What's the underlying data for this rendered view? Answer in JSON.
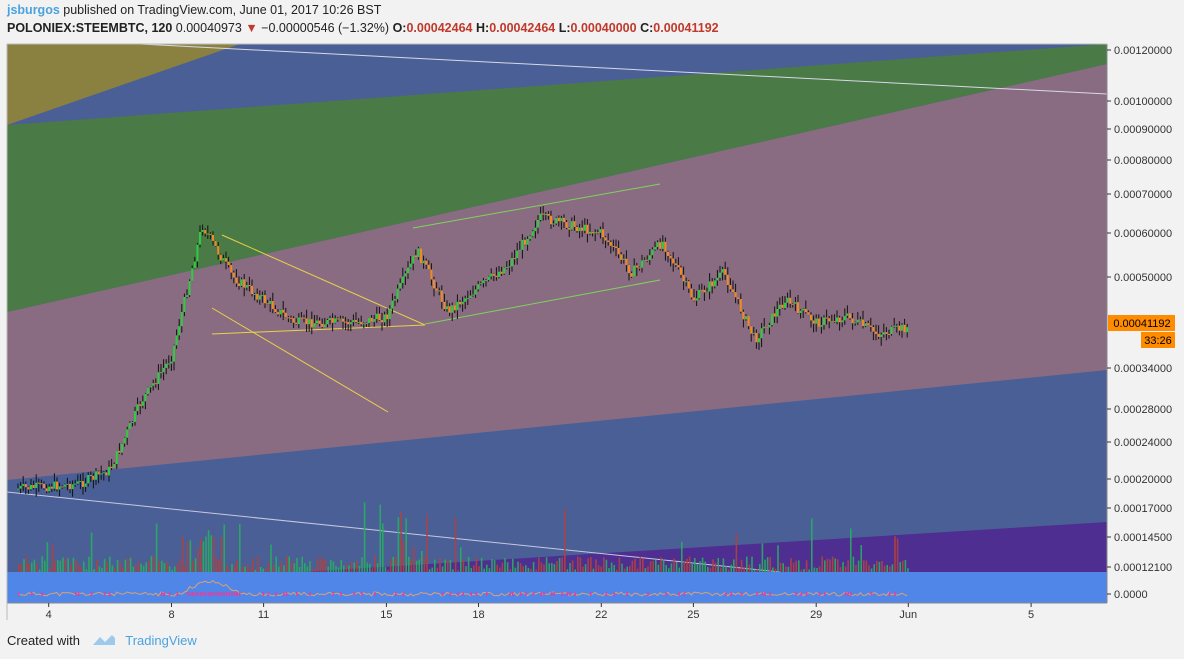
{
  "header": {
    "username": "jsburgos",
    "published_text": "published on TradingView.com, June 01, 2017 10:26 BST",
    "symbol": "POLONIEX:STEEMBTC, 120",
    "last_price": "0.00040973",
    "change": "−0.00000546 (−1.32%)",
    "open_label": "O:",
    "open_value": "0.00042464",
    "high_label": "H:",
    "high_value": "0.00042464",
    "low_label": "L:",
    "low_value": "0.00040000",
    "close_label": "C:",
    "close_value": "0.00041192"
  },
  "price_label": {
    "value": "0.00041192",
    "countdown": "33:26"
  },
  "footer": {
    "created_with": "Created with",
    "brand": "TradingView"
  },
  "colors": {
    "up_candle": "#2ecc40",
    "down_candle": "#f08a24",
    "volume_up": "#27ae60",
    "volume_down": "#b0413e",
    "band_olive": "#8a8040",
    "band_green": "#4a7a45",
    "band_mauve": "#8a6c82",
    "band_blue": "#4a5f96",
    "band_purple": "#4f2e91",
    "oscillator_bg": "#4f86e8",
    "trendline": "#e8d24a"
  },
  "chart_data": {
    "type": "candlestick",
    "symbol": "POLONIEX:STEEMBTC",
    "interval": "120",
    "y_ticks": [
      "0.00120000",
      "0.00100000",
      "0.00090000",
      "0.00080000",
      "0.00070000",
      "0.00060000",
      "0.00050000",
      "0.00034000",
      "0.00028000",
      "0.00024000",
      "0.00020000",
      "0.00017000",
      "0.00014500",
      "0.00012100"
    ],
    "x_ticks": [
      "4",
      "8",
      "11",
      "15",
      "18",
      "22",
      "25",
      "29",
      "Jun",
      "5"
    ],
    "oscillator_tick": "0.0000",
    "approx_close_path": [
      {
        "date": "May 3",
        "price": 0.00019
      },
      {
        "date": "May 5",
        "price": 0.000195
      },
      {
        "date": "May 6",
        "price": 0.00021
      },
      {
        "date": "May 7",
        "price": 0.00029
      },
      {
        "date": "May 8",
        "price": 0.00036
      },
      {
        "date": "May 9",
        "price": 0.00062
      },
      {
        "date": "May 10",
        "price": 0.0005
      },
      {
        "date": "May 11",
        "price": 0.00046
      },
      {
        "date": "May 12",
        "price": 0.00042
      },
      {
        "date": "May 14",
        "price": 0.00042
      },
      {
        "date": "May 15",
        "price": 0.00043
      },
      {
        "date": "May 16",
        "price": 0.00056
      },
      {
        "date": "May 17",
        "price": 0.00044
      },
      {
        "date": "May 19",
        "price": 0.00053
      },
      {
        "date": "May 20",
        "price": 0.00064
      },
      {
        "date": "May 22",
        "price": 0.0006
      },
      {
        "date": "May 23",
        "price": 0.00051
      },
      {
        "date": "May 24",
        "price": 0.00058
      },
      {
        "date": "May 25",
        "price": 0.00046
      },
      {
        "date": "May 26",
        "price": 0.00051
      },
      {
        "date": "May 27",
        "price": 0.00039
      },
      {
        "date": "May 28",
        "price": 0.00046
      },
      {
        "date": "May 29",
        "price": 0.00042
      },
      {
        "date": "May 30",
        "price": 0.00043
      },
      {
        "date": "May 31",
        "price": 0.0004
      },
      {
        "date": "Jun 1",
        "price": 0.00041192
      }
    ]
  }
}
